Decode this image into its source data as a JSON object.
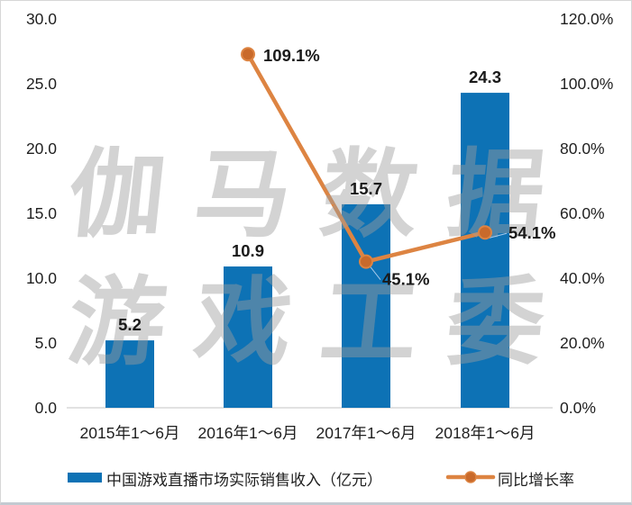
{
  "watermark": {
    "line1": "伽马数据",
    "line2": "游戏工委",
    "color_rgba": "rgba(158,158,158,0.45)"
  },
  "legend": {
    "bar_label": "中国游戏直播市场实际销售收入（亿元）",
    "line_label": "同比增长率"
  },
  "colors": {
    "bar": "#0D72B5",
    "line": "#DD8442",
    "marker": "#C96A2B",
    "axis_text": "#1f1f1f",
    "baseline": "#d9d9d9",
    "leader": "#a6c9ea",
    "data_label": "#1a1a1a"
  },
  "chart_data": {
    "type": "bar",
    "subtype": "bar+line combo, dual axis",
    "categories": [
      "2015年1～6月",
      "2016年1～6月",
      "2017年1～6月",
      "2018年1～6月"
    ],
    "series": [
      {
        "name": "中国游戏直播市场实际销售收入（亿元）",
        "type": "bar",
        "axis": "left",
        "values": [
          5.2,
          10.9,
          15.7,
          24.3
        ],
        "labels": [
          "5.2",
          "10.9",
          "15.7",
          "24.3"
        ]
      },
      {
        "name": "同比增长率",
        "type": "line",
        "axis": "right",
        "values": [
          null,
          109.1,
          45.1,
          54.1
        ],
        "labels": [
          null,
          "109.1%",
          "45.1%",
          "54.1%"
        ],
        "label_dx": [
          0,
          17,
          18,
          26
        ],
        "label_dy": [
          0,
          8,
          26,
          7
        ],
        "leader": [
          false,
          false,
          true,
          true
        ]
      }
    ],
    "left_axis": {
      "min": 0,
      "max": 30,
      "step": 5,
      "tick_labels": [
        "30.0",
        "25.0",
        "20.0",
        "15.0",
        "10.0",
        "5.0",
        "0.0"
      ]
    },
    "right_axis": {
      "min": 0,
      "max": 120,
      "step": 20,
      "tick_labels": [
        "120.0%",
        "100.0%",
        "80.0%",
        "60.0%",
        "40.0%",
        "20.0%",
        "0.0%"
      ]
    },
    "grid": false,
    "legend_position": "bottom",
    "title": ""
  }
}
